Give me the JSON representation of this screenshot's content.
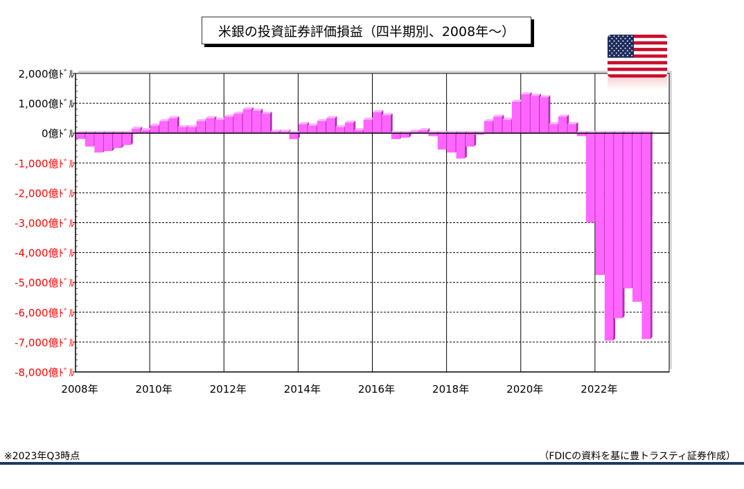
{
  "title": "米銀の投資証券評価損益（四半期別、2008年～）",
  "footnote_left": "※2023年Q3時点",
  "footnote_right": "（FDICの資料を基に豊トラスティ証券作成）",
  "flag": "us-flag",
  "colors": {
    "bar": "#ff66ff",
    "bar_side": "#b030b0",
    "bar_top": "#ffb0ff",
    "negative_label": "#ff0000",
    "rule": "#1f3864"
  },
  "chart_data": {
    "type": "bar",
    "title": "米銀の投資証券評価損益（四半期別、2008年～）",
    "xlabel": "",
    "ylabel": "",
    "unit_suffix": "億ドル",
    "ylim": [
      -8000,
      2000
    ],
    "yticks": [
      {
        "value": 2000,
        "label": "2,000億ﾄﾞﾙ"
      },
      {
        "value": 1000,
        "label": "1,000億ﾄﾞﾙ"
      },
      {
        "value": 0,
        "label": "0億ﾄﾞﾙ"
      },
      {
        "value": -1000,
        "label": "-1,000億ﾄﾞﾙ"
      },
      {
        "value": -2000,
        "label": "-2,000億ﾄﾞﾙ"
      },
      {
        "value": -3000,
        "label": "-3,000億ﾄﾞﾙ"
      },
      {
        "value": -4000,
        "label": "-4,000億ﾄﾞﾙ"
      },
      {
        "value": -5000,
        "label": "-5,000億ﾄﾞﾙ"
      },
      {
        "value": -6000,
        "label": "-6,000億ﾄﾞﾙ"
      },
      {
        "value": -7000,
        "label": "-7,000億ﾄﾞﾙ"
      },
      {
        "value": -8000,
        "label": "-8,000億ﾄﾞﾙ"
      }
    ],
    "xticks": [
      "2008年",
      "2010年",
      "2012年",
      "2014年",
      "2016年",
      "2018年",
      "2020年",
      "2022年"
    ],
    "grid": true,
    "categories": [
      "2008Q1",
      "2008Q2",
      "2008Q3",
      "2008Q4",
      "2009Q1",
      "2009Q2",
      "2009Q3",
      "2009Q4",
      "2010Q1",
      "2010Q2",
      "2010Q3",
      "2010Q4",
      "2011Q1",
      "2011Q2",
      "2011Q3",
      "2011Q4",
      "2012Q1",
      "2012Q2",
      "2012Q3",
      "2012Q4",
      "2013Q1",
      "2013Q2",
      "2013Q3",
      "2013Q4",
      "2014Q1",
      "2014Q2",
      "2014Q3",
      "2014Q4",
      "2015Q1",
      "2015Q2",
      "2015Q3",
      "2015Q4",
      "2016Q1",
      "2016Q2",
      "2016Q3",
      "2016Q4",
      "2017Q1",
      "2017Q2",
      "2017Q3",
      "2017Q4",
      "2018Q1",
      "2018Q2",
      "2018Q3",
      "2018Q4",
      "2019Q1",
      "2019Q2",
      "2019Q3",
      "2019Q4",
      "2020Q1",
      "2020Q2",
      "2020Q3",
      "2020Q4",
      "2021Q1",
      "2021Q2",
      "2021Q3",
      "2021Q4",
      "2022Q1",
      "2022Q2",
      "2022Q3",
      "2022Q4",
      "2023Q1",
      "2023Q2",
      "2023Q3"
    ],
    "values": [
      -200,
      -450,
      -650,
      -600,
      -500,
      -400,
      150,
      100,
      250,
      400,
      500,
      200,
      200,
      400,
      500,
      450,
      550,
      650,
      800,
      750,
      650,
      50,
      50,
      -200,
      300,
      250,
      400,
      500,
      200,
      350,
      100,
      450,
      700,
      600,
      -200,
      -150,
      50,
      100,
      -100,
      -550,
      -650,
      -850,
      -450,
      -50,
      400,
      550,
      450,
      1050,
      1300,
      1250,
      1200,
      300,
      550,
      300,
      -100,
      -3000,
      -4750,
      -6950,
      -6200,
      -5200,
      -5650,
      -6900,
      0
    ]
  }
}
